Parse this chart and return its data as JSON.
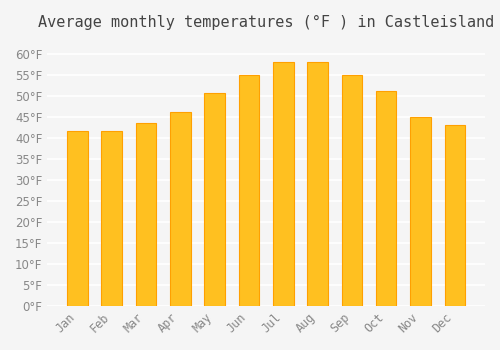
{
  "title": "Average monthly temperatures (°F ) in Castleisland",
  "months": [
    "Jan",
    "Feb",
    "Mar",
    "Apr",
    "May",
    "Jun",
    "Jul",
    "Aug",
    "Sep",
    "Oct",
    "Nov",
    "Dec"
  ],
  "values": [
    41.5,
    41.5,
    43.5,
    46,
    50.5,
    55,
    58,
    58,
    55,
    51,
    45,
    43
  ],
  "bar_color": "#FFC020",
  "bar_edge_color": "#FFA000",
  "background_color": "#F5F5F5",
  "grid_color": "#FFFFFF",
  "ylim": [
    0,
    63
  ],
  "yticks": [
    0,
    5,
    10,
    15,
    20,
    25,
    30,
    35,
    40,
    45,
    50,
    55,
    60
  ],
  "title_fontsize": 11,
  "tick_fontsize": 8.5,
  "tick_label_color": "#888888"
}
